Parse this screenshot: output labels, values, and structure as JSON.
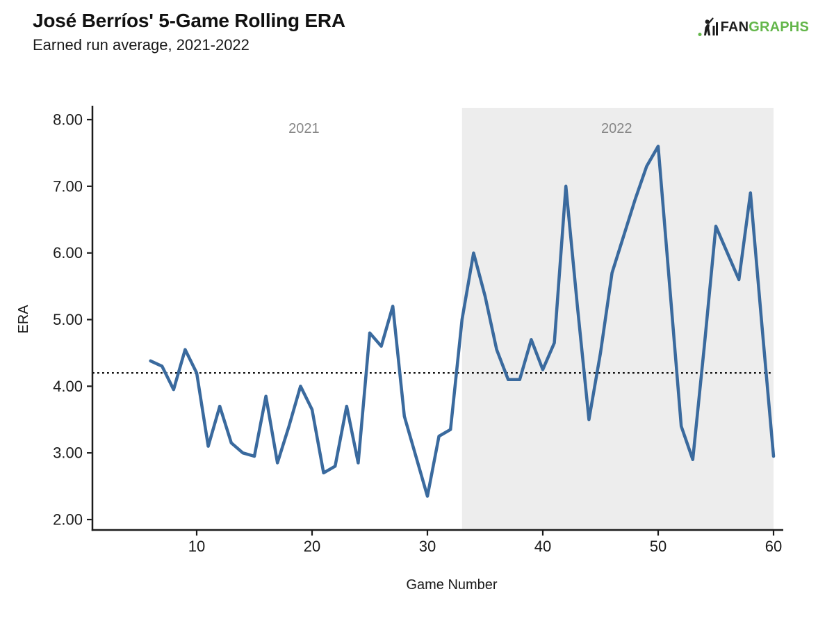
{
  "header": {
    "title": "José Berríos' 5-Game Rolling ERA",
    "subtitle": "Earned run average, 2021-2022",
    "logo": {
      "fan": "FAN",
      "graphs": "GRAPHS",
      "green": "#63b64a",
      "dark": "#1d1d1d"
    }
  },
  "chart_data": {
    "type": "line",
    "title": "José Berríos' 5-Game Rolling ERA",
    "subtitle": "Earned run average, 2021-2022",
    "xlabel": "Game Number",
    "ylabel": "ERA",
    "x_ticks": [
      10,
      20,
      30,
      40,
      50,
      60
    ],
    "y_ticks": [
      2,
      3,
      4,
      5,
      6,
      7,
      8
    ],
    "xlim": [
      1,
      60
    ],
    "ylim": [
      1.84,
      8.18
    ],
    "grid": false,
    "legend": "none",
    "axis_color": "#1a1a1a",
    "reference_line": {
      "value": 4.2,
      "style": "dotted",
      "color": "#111111"
    },
    "regions": [
      {
        "label": "2021",
        "x_start": 1,
        "x_end": 33,
        "shaded": false,
        "fill": "#ffffff",
        "label_x": 19.3,
        "label_color": "#878787"
      },
      {
        "label": "2022",
        "x_start": 33,
        "x_end": 60,
        "shaded": true,
        "fill": "#ededed",
        "label_x": 46.4,
        "label_color": "#878787"
      }
    ],
    "series": [
      {
        "name": "5-Game Rolling ERA",
        "color": "#3a6a9e",
        "x": [
          6,
          7,
          8,
          9,
          10,
          11,
          12,
          13,
          14,
          15,
          16,
          17,
          18,
          19,
          20,
          21,
          22,
          23,
          24,
          25,
          26,
          27,
          28,
          29,
          30,
          31,
          32,
          33,
          34,
          35,
          36,
          37,
          38,
          39,
          40,
          41,
          42,
          43,
          44,
          45,
          46,
          47,
          48,
          49,
          50,
          51,
          52,
          53,
          54,
          55,
          56,
          57,
          58,
          59,
          60
        ],
        "values": [
          4.38,
          4.3,
          3.95,
          4.55,
          4.2,
          3.1,
          3.7,
          3.15,
          3.0,
          2.95,
          3.85,
          2.85,
          3.4,
          4.0,
          3.65,
          2.7,
          2.8,
          3.7,
          2.85,
          4.8,
          4.6,
          5.2,
          3.55,
          2.95,
          2.35,
          3.25,
          3.35,
          5.0,
          6.0,
          5.35,
          4.55,
          4.1,
          4.1,
          4.7,
          4.25,
          4.65,
          7.0,
          5.2,
          3.5,
          4.5,
          5.7,
          6.25,
          6.8,
          7.3,
          7.6,
          5.5,
          3.4,
          2.9,
          4.6,
          6.4,
          6.0,
          5.6,
          6.9,
          4.9,
          2.95
        ]
      }
    ]
  }
}
